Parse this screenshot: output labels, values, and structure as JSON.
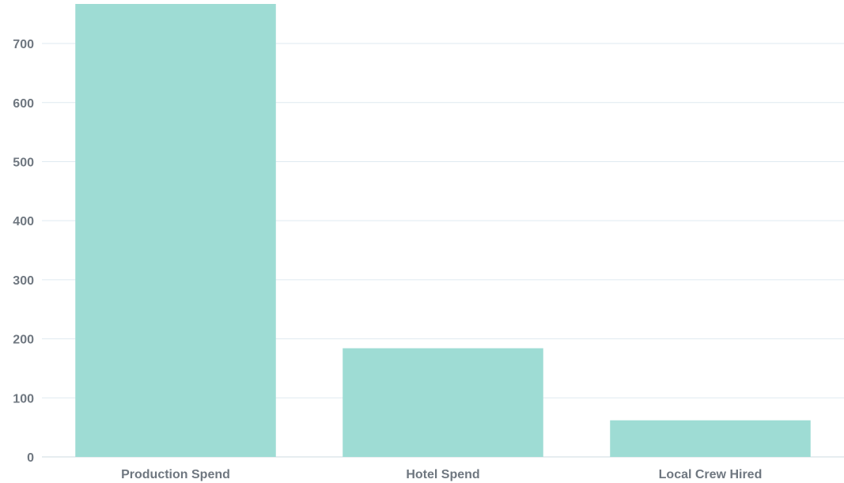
{
  "chart_data": {
    "type": "bar",
    "categories": [
      "Production Spend",
      "Hotel Spend",
      "Local Crew Hired"
    ],
    "values": [
      767,
      184,
      62
    ],
    "ylim": [
      0,
      767
    ],
    "yticks": [
      0,
      100,
      200,
      300,
      400,
      500,
      600,
      700
    ],
    "grid": true,
    "colors": {
      "bar": "#9edcd4",
      "grid": "#dfeaf0",
      "text": "#6f7780"
    }
  }
}
